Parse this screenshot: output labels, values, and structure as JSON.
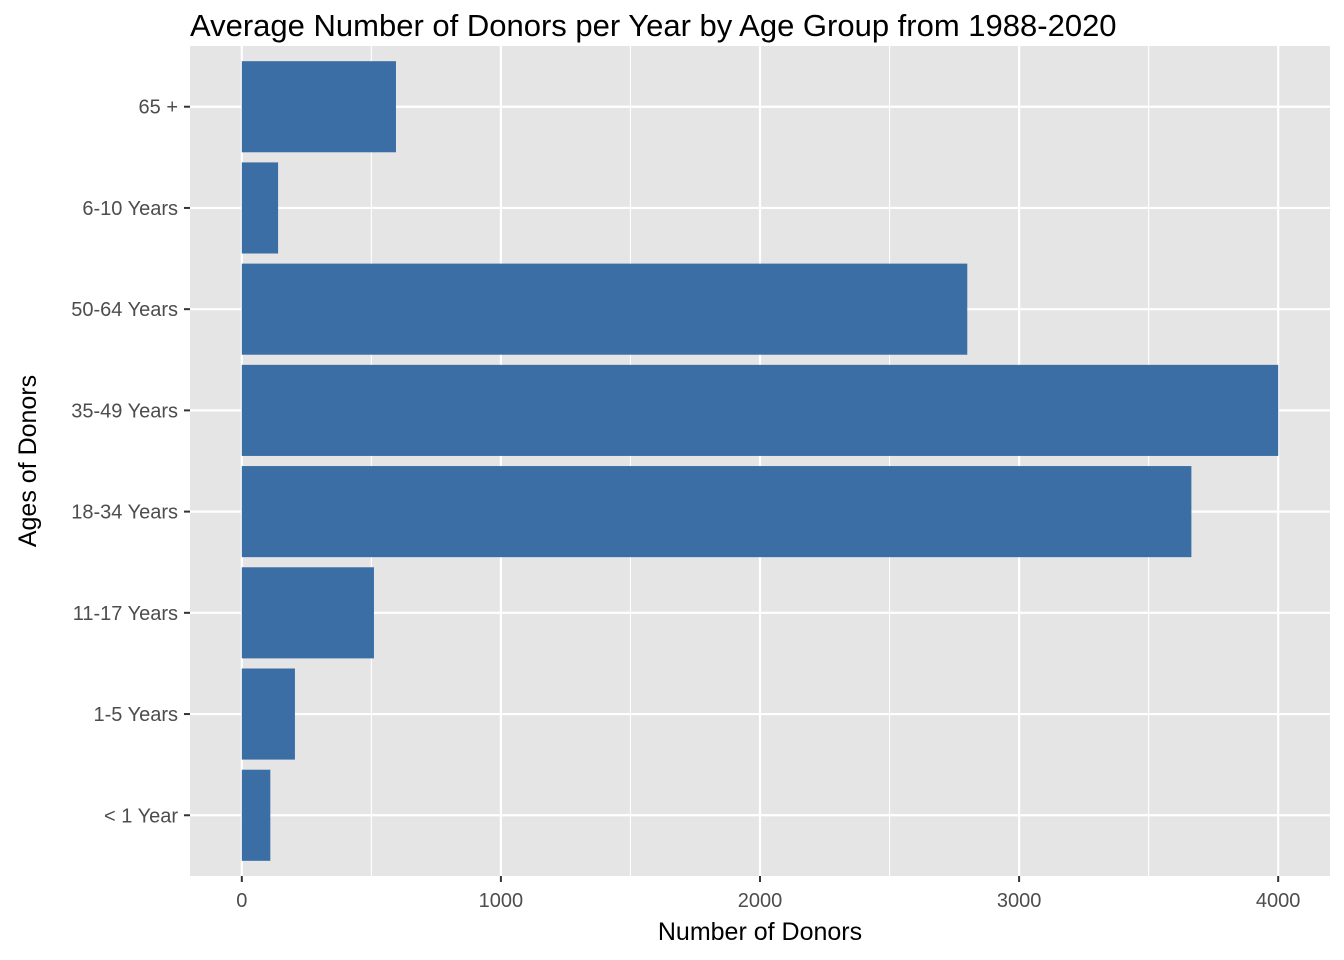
{
  "chart_data": {
    "type": "bar",
    "orientation": "horizontal",
    "title": "Average Number of Donors per Year by Age Group from 1988-2020",
    "xlabel": "Number of Donors",
    "ylabel": "Ages of Donors",
    "categories": [
      "< 1 Year",
      "1-5 Years",
      "11-17 Years",
      "18-34 Years",
      "35-49 Years",
      "50-64 Years",
      "6-10 Years",
      "65 +"
    ],
    "values": [
      110,
      205,
      510,
      3665,
      4000,
      2800,
      140,
      595
    ],
    "xlim": [
      -200,
      4200
    ],
    "xticks": [
      0,
      1000,
      2000,
      3000,
      4000
    ],
    "xtick_labels": [
      "0",
      "1000",
      "2000",
      "3000",
      "4000"
    ],
    "grid": true,
    "legend": "none",
    "colors": {
      "bar": "#3a6ea5",
      "panel": "#e5e5e5",
      "grid": "#ffffff"
    }
  }
}
